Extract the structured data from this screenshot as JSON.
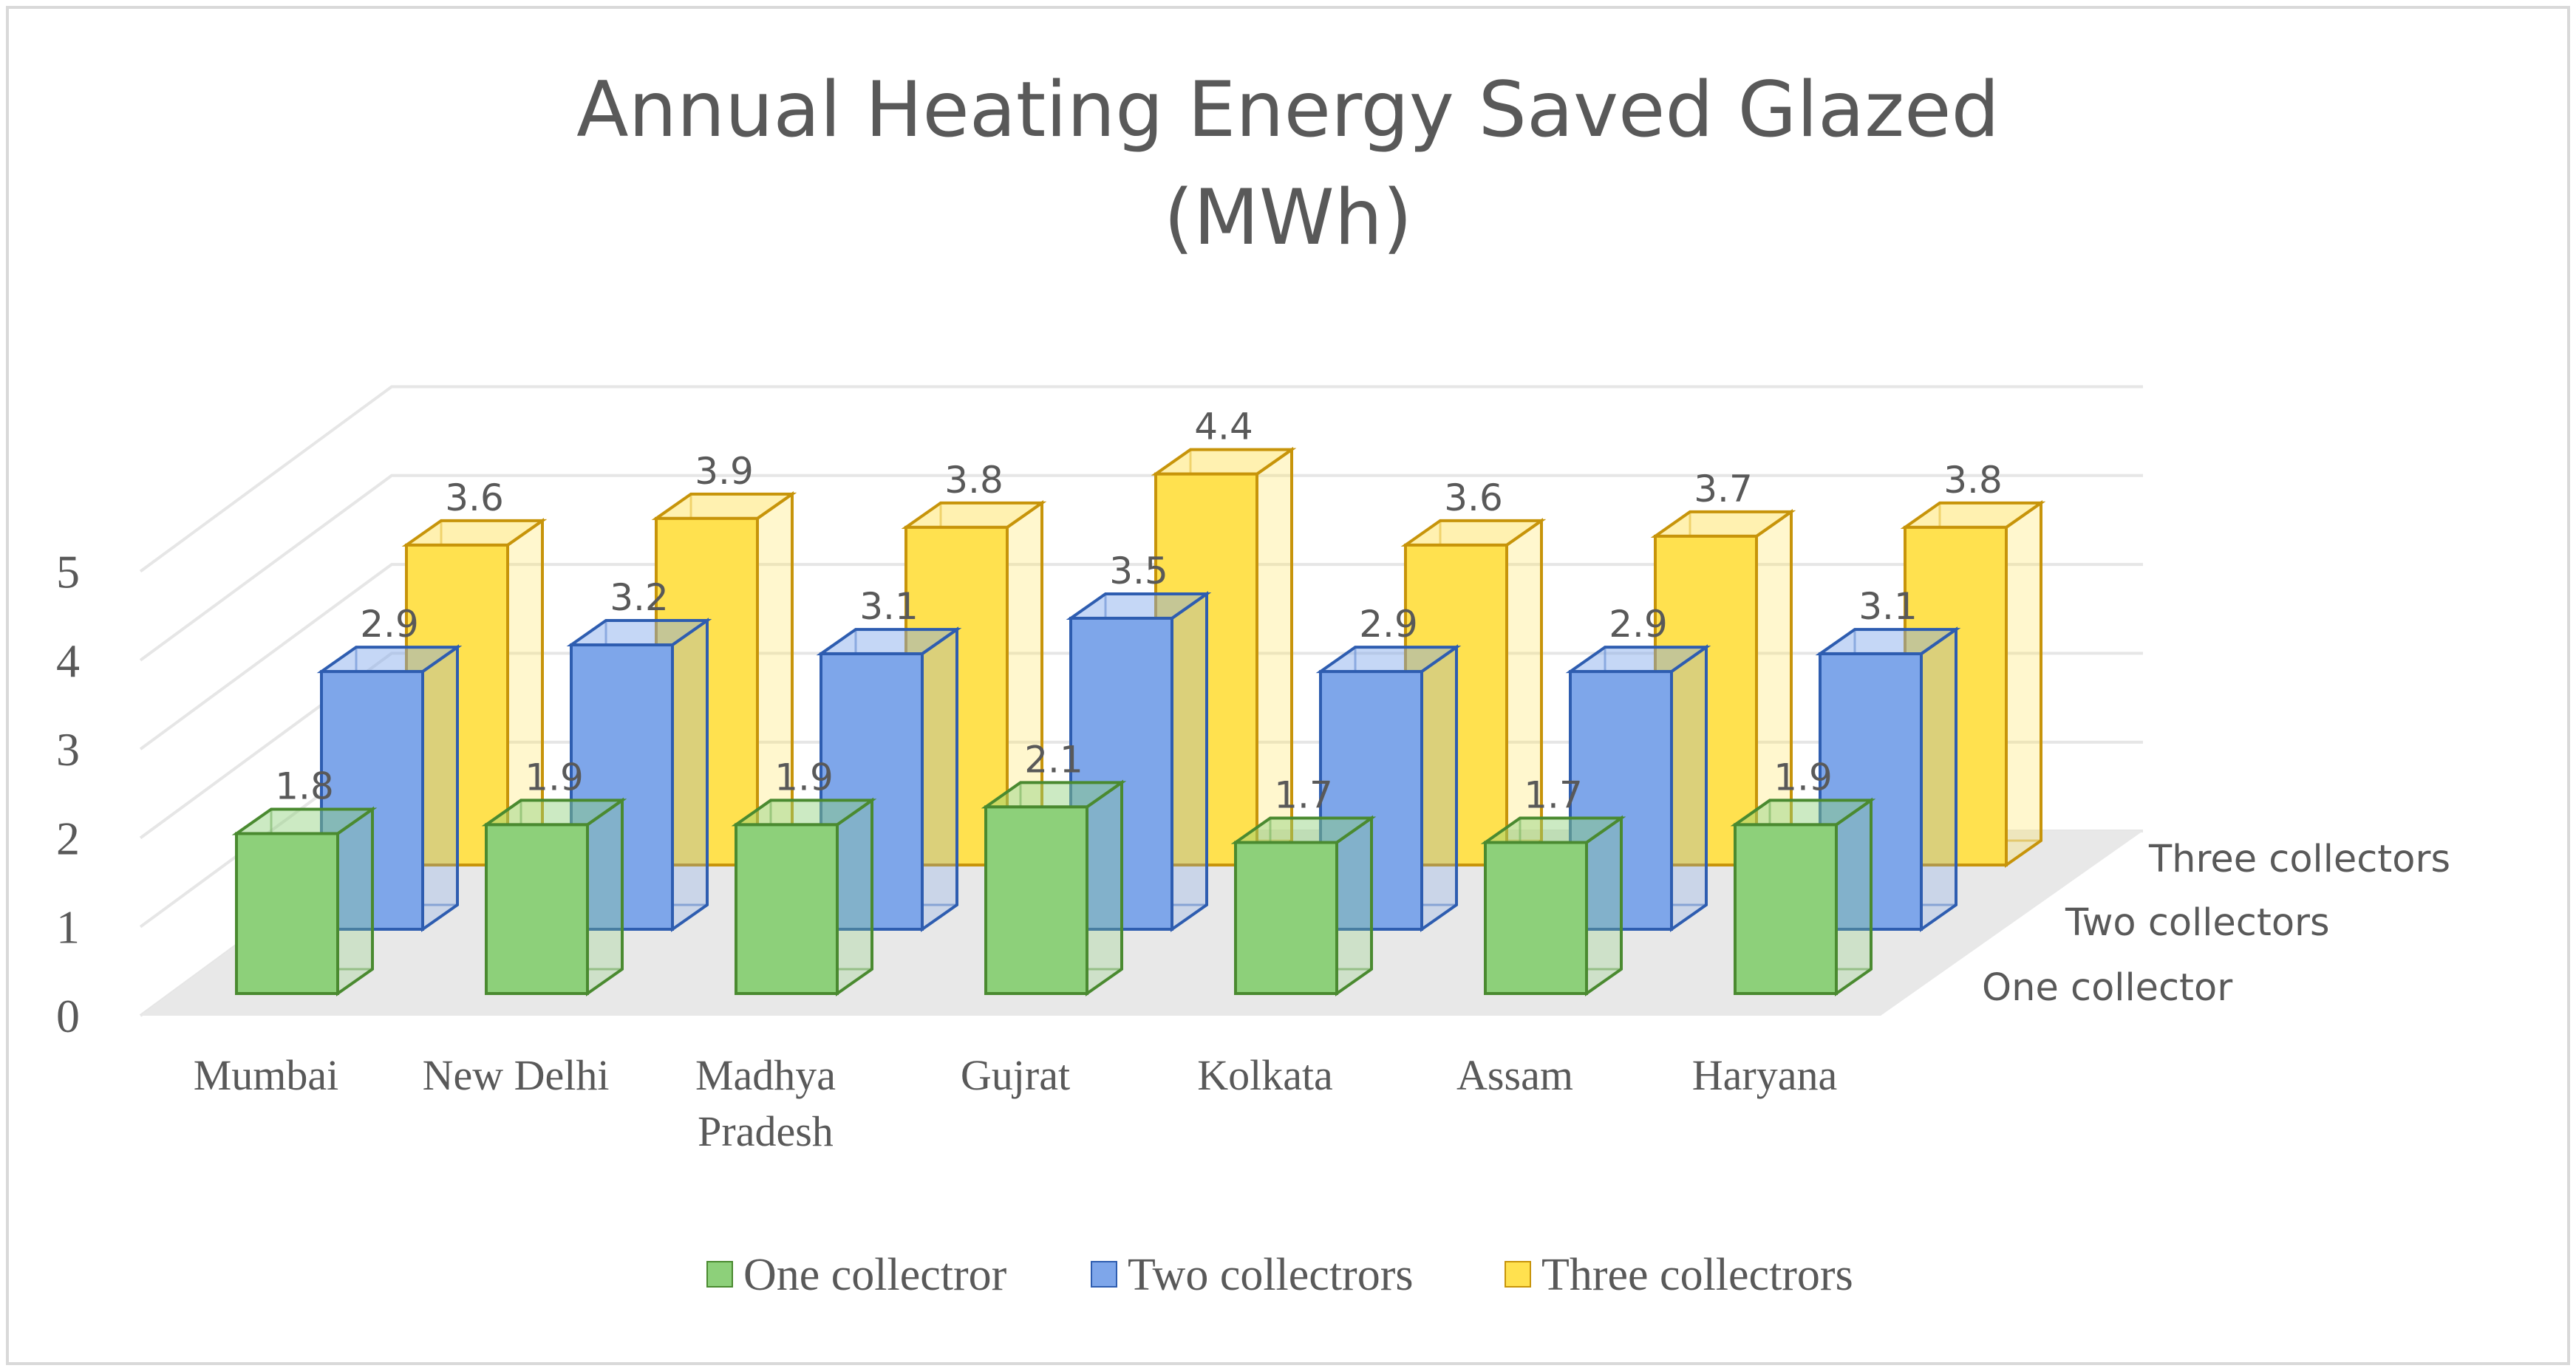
{
  "chart_data": {
    "type": "bar",
    "variant": "3d-clustered-depth",
    "title": [
      "Annual Heating Energy Saved Glazed",
      "(MWh)"
    ],
    "categories": [
      "Mumbai",
      "New Delhi",
      "Madhya Pradesh",
      "Gujrat",
      "Kolkata",
      "Assam",
      "Haryana"
    ],
    "category_lines": [
      [
        "Mumbai"
      ],
      [
        "New Delhi"
      ],
      [
        "Madhya",
        "Pradesh"
      ],
      [
        "Gujrat"
      ],
      [
        "Kolkata"
      ],
      [
        "Assam"
      ],
      [
        "Haryana"
      ]
    ],
    "series": [
      {
        "name": "One collectror",
        "color": "#8dd07a",
        "edge": "#4a8a30",
        "values": [
          1.8,
          1.9,
          1.9,
          2.1,
          1.7,
          1.7,
          1.9
        ]
      },
      {
        "name": "Two collectrors",
        "color": "#7ea6ea",
        "edge": "#2e5db0",
        "values": [
          2.9,
          3.2,
          3.1,
          3.5,
          2.9,
          2.9,
          3.1
        ]
      },
      {
        "name": "Three collectrors",
        "color": "#ffe14f",
        "edge": "#c7940a",
        "values": [
          3.6,
          3.9,
          3.8,
          4.4,
          3.6,
          3.7,
          3.8
        ]
      }
    ],
    "y_ticks": [
      0,
      1,
      2,
      3,
      4,
      5
    ],
    "ylim": [
      0,
      5
    ],
    "depth_labels": [
      "Three collectors",
      "Two collectors",
      "One collector"
    ],
    "legend_position": "bottom",
    "grid": true
  }
}
